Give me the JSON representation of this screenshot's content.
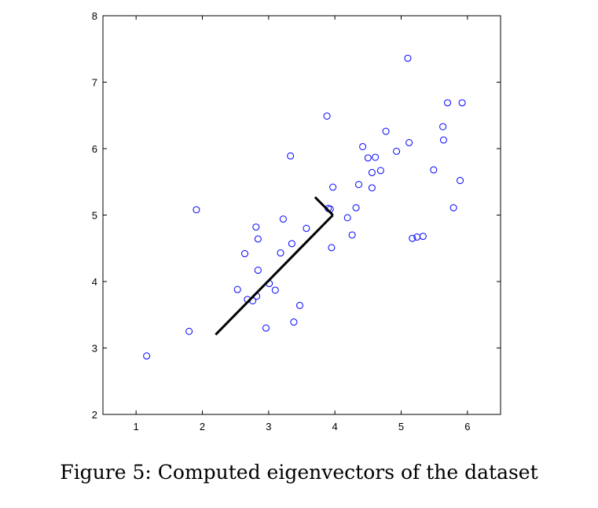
{
  "caption": "Figure 5: Computed eigenvectors of the dataset",
  "chart_data": {
    "type": "scatter",
    "title": "",
    "xlabel": "",
    "ylabel": "",
    "xlim": [
      0.5,
      6.5
    ],
    "ylim": [
      2,
      8
    ],
    "xticks": [
      1,
      2,
      3,
      4,
      5,
      6
    ],
    "yticks": [
      2,
      3,
      4,
      5,
      6,
      7,
      8
    ],
    "grid": false,
    "marker": "circle-open",
    "marker_color": "#0000ff",
    "line_color": "#000000",
    "points": [
      [
        1.16,
        2.88
      ],
      [
        1.8,
        3.25
      ],
      [
        1.91,
        5.08
      ],
      [
        2.53,
        3.88
      ],
      [
        2.64,
        4.42
      ],
      [
        2.68,
        3.73
      ],
      [
        2.76,
        3.71
      ],
      [
        2.81,
        4.82
      ],
      [
        2.82,
        3.78
      ],
      [
        2.84,
        4.64
      ],
      [
        2.84,
        4.17
      ],
      [
        2.96,
        3.3
      ],
      [
        3.01,
        3.97
      ],
      [
        3.1,
        3.87
      ],
      [
        3.18,
        4.43
      ],
      [
        3.22,
        4.94
      ],
      [
        3.33,
        5.89
      ],
      [
        3.35,
        4.57
      ],
      [
        3.38,
        3.39
      ],
      [
        3.47,
        3.64
      ],
      [
        3.57,
        4.8
      ],
      [
        3.88,
        6.49
      ],
      [
        3.9,
        5.1
      ],
      [
        3.93,
        5.09
      ],
      [
        3.95,
        4.51
      ],
      [
        3.97,
        5.42
      ],
      [
        4.19,
        4.96
      ],
      [
        4.26,
        4.7
      ],
      [
        4.32,
        5.11
      ],
      [
        4.36,
        5.46
      ],
      [
        4.42,
        6.03
      ],
      [
        4.5,
        5.86
      ],
      [
        4.56,
        5.41
      ],
      [
        4.56,
        5.64
      ],
      [
        4.61,
        5.87
      ],
      [
        4.69,
        5.67
      ],
      [
        4.77,
        6.26
      ],
      [
        4.93,
        5.96
      ],
      [
        5.1,
        7.36
      ],
      [
        5.12,
        6.09
      ],
      [
        5.17,
        4.65
      ],
      [
        5.24,
        4.67
      ],
      [
        5.33,
        4.68
      ],
      [
        5.49,
        5.68
      ],
      [
        5.63,
        6.33
      ],
      [
        5.64,
        6.13
      ],
      [
        5.7,
        6.69
      ],
      [
        5.79,
        5.11
      ],
      [
        5.89,
        5.52
      ],
      [
        5.92,
        6.69
      ]
    ],
    "eigenvectors": [
      {
        "from": [
          3.97,
          5.0
        ],
        "to": [
          2.2,
          3.2
        ]
      },
      {
        "from": [
          3.97,
          5.0
        ],
        "to": [
          3.7,
          5.27
        ]
      }
    ]
  }
}
